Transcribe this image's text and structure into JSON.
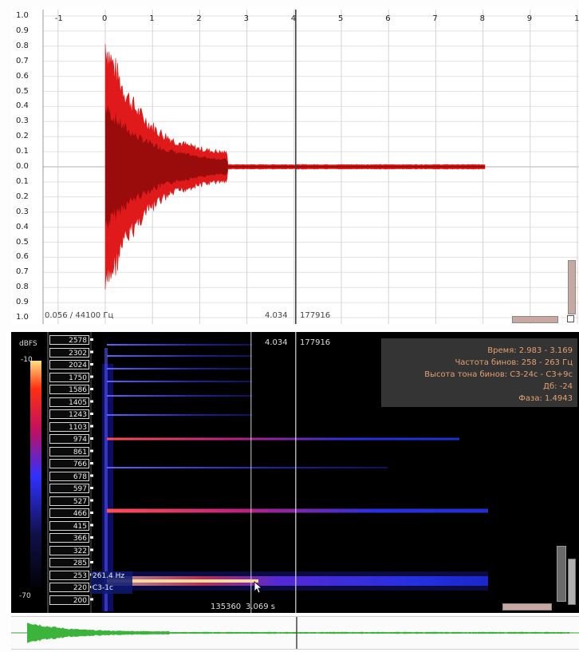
{
  "waveform": {
    "y_ticks": [
      "1.0",
      "0.9",
      "0.8",
      "0.7",
      "0.6",
      "0.5",
      "0.4",
      "0.3",
      "0.2",
      "0.1",
      "0.0",
      "0.1",
      "0.2",
      "0.3",
      "0.4",
      "0.5",
      "0.6",
      "0.7",
      "0.8",
      "0.9",
      "1.0"
    ],
    "x_ticks": [
      "-1",
      "0",
      "1",
      "2",
      "3",
      "4",
      "5",
      "6",
      "7",
      "8",
      "9",
      "1"
    ],
    "info_left": "0.056 / 44100 Гц",
    "cursor_time": "4.034",
    "cursor_sample": "177916",
    "colors": {
      "wave_outer": "#e01a1a",
      "wave_inner": "#9a0c0c",
      "grid": "#d8d8d8"
    }
  },
  "spectrogram": {
    "cursor_time": "4.034",
    "cursor_sample": "177916",
    "db_label": "dBFS",
    "db_top": "-10",
    "db_bottom": "-70",
    "freq_labels": [
      "2578",
      "2302",
      "2024",
      "1750",
      "1586",
      "1405",
      "1243",
      "1103",
      "974",
      "861",
      "766",
      "678",
      "597",
      "527",
      "466",
      "415",
      "366",
      "322",
      "285",
      "253",
      "220",
      "200"
    ],
    "info": {
      "time": "Время: 2.983 - 3.169",
      "bin_freq": "Частота бинов: 258 - 263 Гц",
      "bin_pitch": "Высота тона бинов: C3-24c - C3+9c",
      "db": "Дб: -24",
      "phase": "Фаза: 1.4943"
    },
    "hover_freq": "261.4 Hz",
    "hover_note": "C3-1c",
    "bottom_sample": "135360",
    "bottom_time": "3.069 s"
  }
}
